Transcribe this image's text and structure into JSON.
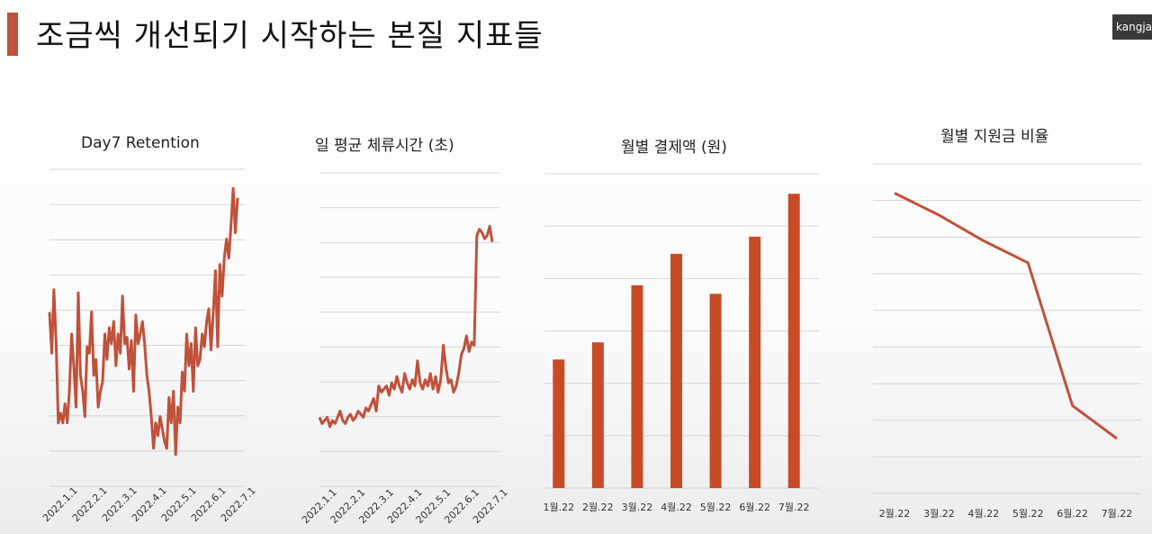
{
  "slide": {
    "title": "조금씩 개선되기 시작하는 본질 지표들",
    "video_label": "kangja",
    "accent_color": "#c0513a",
    "bar_color": "#c84b26"
  },
  "chart_data": [
    {
      "type": "line",
      "title": "Day7 Retention",
      "x_ticks": [
        "2022.1.1",
        "2022.2.1",
        "2022.3.1",
        "2022.4.1",
        "2022.5.1",
        "2022.6.1",
        "2022.7.1"
      ],
      "y": [
        55,
        42,
        62,
        45,
        20,
        23,
        20,
        26,
        20,
        30,
        48,
        38,
        25,
        61,
        35,
        30,
        22,
        44,
        42,
        55,
        35,
        40,
        25,
        30,
        33,
        48,
        40,
        50,
        45,
        52,
        38,
        48,
        42,
        60,
        45,
        47,
        37,
        46,
        30,
        54,
        45,
        48,
        52,
        45,
        35,
        30,
        22,
        12,
        20,
        16,
        22,
        18,
        14,
        12,
        28,
        20,
        30,
        10,
        25,
        20,
        36,
        30,
        48,
        38,
        45,
        30,
        50,
        38,
        40,
        48,
        44,
        52,
        56,
        43,
        55,
        68,
        44,
        70,
        60,
        72,
        78,
        72,
        82,
        94,
        80,
        91
      ],
      "ylim": [
        0,
        100
      ],
      "grid": true
    },
    {
      "type": "line",
      "title": "일 평균 체류시간 (초)",
      "x_ticks": [
        "2022.1.1",
        "2022.2.1",
        "2022.3.1",
        "2022.4.1",
        "2022.5.1",
        "2022.6.1",
        "2022.7.1"
      ],
      "y": [
        22,
        20,
        21,
        22,
        19,
        21,
        20,
        22,
        24,
        21,
        20,
        22,
        23,
        21,
        22,
        24,
        23,
        22,
        25,
        24,
        26,
        28,
        24,
        32,
        30,
        31,
        32,
        29,
        33,
        31,
        35,
        32,
        30,
        36,
        33,
        31,
        34,
        32,
        40,
        33,
        31,
        34,
        32,
        36,
        31,
        35,
        30,
        34,
        45,
        38,
        33,
        34,
        30,
        32,
        36,
        42,
        44,
        48,
        43,
        46,
        45,
        80,
        82,
        81,
        79,
        80,
        83,
        78
      ],
      "ylim": [
        0,
        100
      ],
      "grid": true
    },
    {
      "type": "bar",
      "title": "월별 결제액 (원)",
      "categories": [
        "1월.22",
        "2월.22",
        "3월.22",
        "4월.22",
        "5월.22",
        "6월.22",
        "7월.22"
      ],
      "values": [
        45,
        51,
        71,
        82,
        68,
        88,
        103
      ],
      "ylim": [
        0,
        110
      ],
      "grid": true
    },
    {
      "type": "line",
      "title": "월별 지원금 비율",
      "categories": [
        "2월.22",
        "3월.22",
        "4월.22",
        "5월.22",
        "6월.22",
        "7월.22"
      ],
      "values": [
        82,
        76,
        69,
        63,
        24,
        15
      ],
      "ylim": [
        0,
        90
      ],
      "grid": true
    }
  ]
}
